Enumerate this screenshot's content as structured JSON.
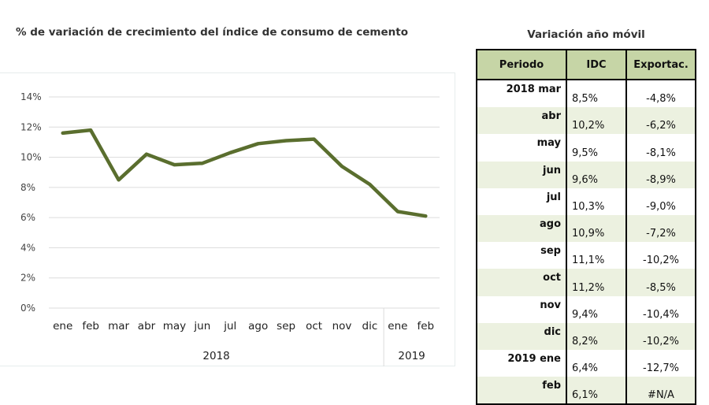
{
  "chart_data": {
    "type": "line",
    "title": "% de variación de crecimiento del índice de consumo de cemento",
    "categories": [
      "ene",
      "feb",
      "mar",
      "abr",
      "may",
      "jun",
      "jul",
      "ago",
      "sep",
      "oct",
      "nov",
      "dic",
      "ene",
      "feb"
    ],
    "year_groups": [
      {
        "label": "2018",
        "count": 12
      },
      {
        "label": "2019",
        "count": 2
      }
    ],
    "series": [
      {
        "values": [
          11.6,
          11.8,
          8.5,
          10.2,
          9.5,
          9.6,
          10.3,
          10.9,
          11.1,
          11.2,
          9.4,
          8.2,
          6.4,
          6.1
        ]
      }
    ],
    "yticks": [
      "0%",
      "2%",
      "4%",
      "6%",
      "8%",
      "10%",
      "12%",
      "14%"
    ],
    "ylim": [
      0,
      14
    ],
    "grid": true,
    "line_color": "#5a6e2e"
  },
  "table": {
    "title": "Variación año móvil",
    "headers": [
      "Periodo",
      "IDC",
      "Exportac."
    ],
    "rows": [
      {
        "period": "2018 mar",
        "idc": "8,5%",
        "exp": "-4,8%"
      },
      {
        "period": "abr",
        "idc": "10,2%",
        "exp": "-6,2%"
      },
      {
        "period": "may",
        "idc": "9,5%",
        "exp": "-8,1%"
      },
      {
        "period": "jun",
        "idc": "9,6%",
        "exp": "-8,9%"
      },
      {
        "period": "jul",
        "idc": "10,3%",
        "exp": "-9,0%"
      },
      {
        "period": "ago",
        "idc": "10,9%",
        "exp": "-7,2%"
      },
      {
        "period": "sep",
        "idc": "11,1%",
        "exp": "-10,2%"
      },
      {
        "period": "oct",
        "idc": "11,2%",
        "exp": "-8,5%"
      },
      {
        "period": "nov",
        "idc": "9,4%",
        "exp": "-10,4%"
      },
      {
        "period": "dic",
        "idc": "8,2%",
        "exp": "-10,2%"
      },
      {
        "period": "2019 ene",
        "idc": "6,4%",
        "exp": "-12,7%"
      },
      {
        "period": "feb",
        "idc": "6,1%",
        "exp": "#N/A"
      }
    ],
    "header_color": "#c6d5a6",
    "alt_row_color": "#ecf1e0"
  }
}
